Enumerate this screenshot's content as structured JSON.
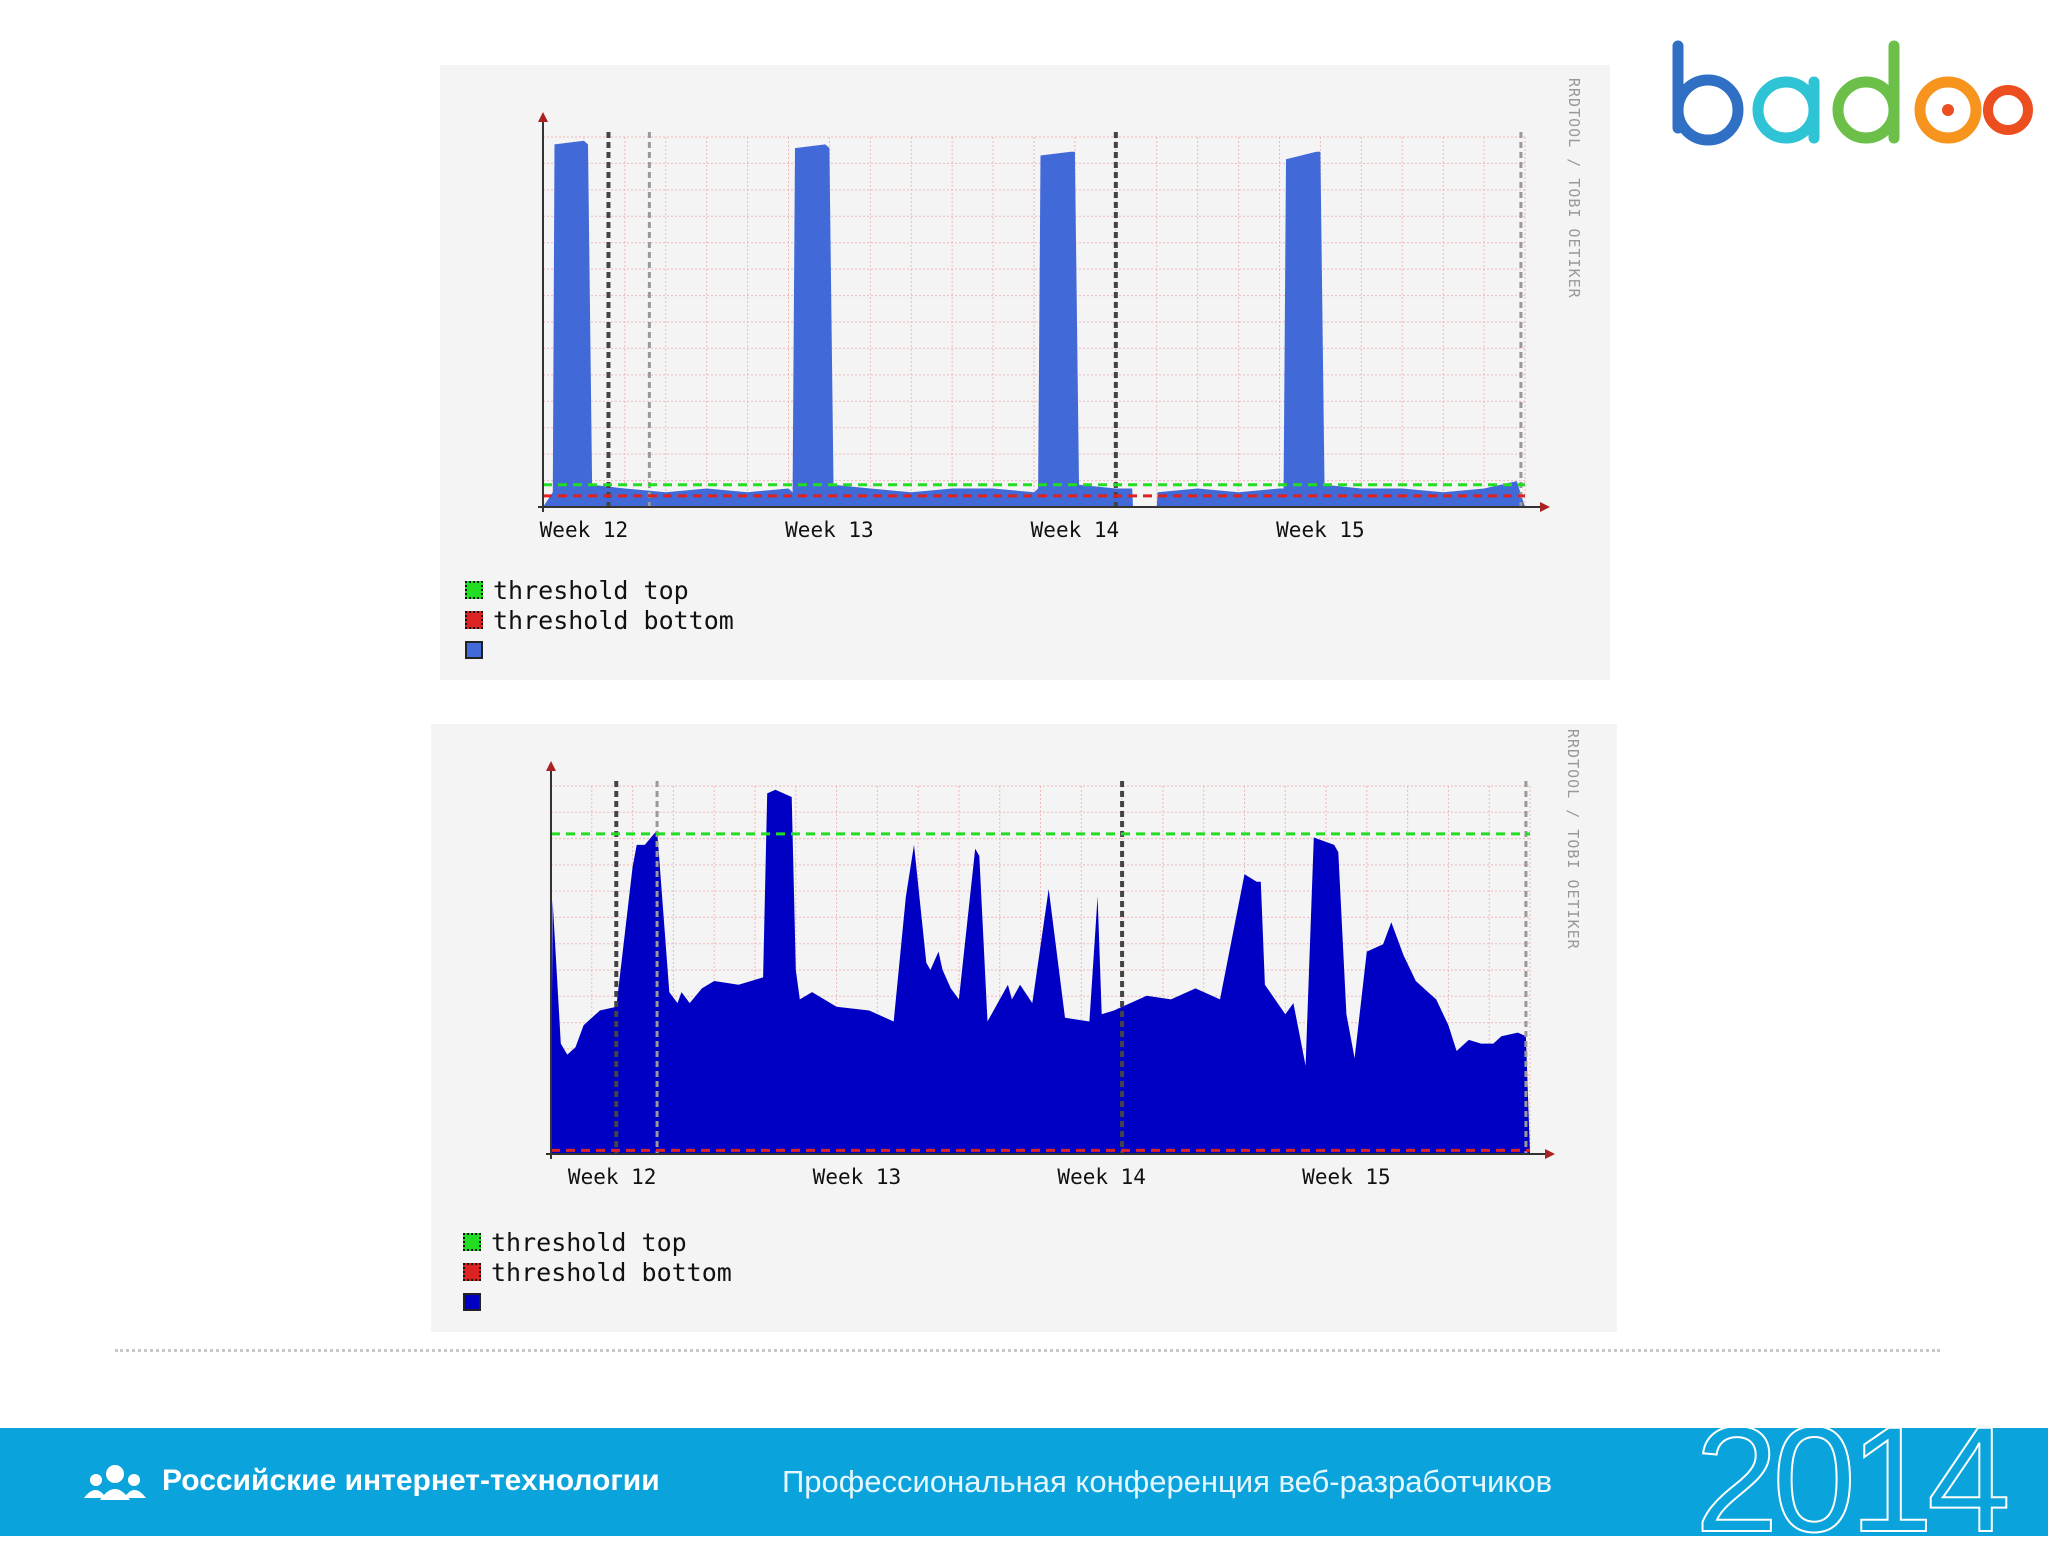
{
  "footer": {
    "organizer": "Российские интернет-технологии",
    "conference": "Профессиональная конференция веб-разработчиков",
    "year": "2014"
  },
  "logo": {
    "text": "badoo",
    "colors": [
      "#2f6fc4",
      "#2ec4d6",
      "#6cc04a",
      "#f7941e",
      "#ec4e20"
    ]
  },
  "colors": {
    "panel_bg": "#f4f4f4",
    "grid": "#f0b9b9",
    "threshold_top": "#22dd22",
    "threshold_bottom": "#dd2222",
    "area_1": "#4169d8",
    "area_2": "#0000c4"
  },
  "chart_data": [
    {
      "type": "area",
      "watermark": "RRDTOOL / TOBI OETIKER",
      "x_tick_labels": [
        "Week 12",
        "Week 13",
        "Week 14",
        "Week 15"
      ],
      "x_tick_positions": [
        0.5,
        3.5,
        6.5,
        9.5
      ],
      "xlim": [
        0,
        12
      ],
      "ylim": [
        0,
        1
      ],
      "grid": true,
      "week_boundaries": [
        0.8,
        7.0
      ],
      "threshold_top": 0.06,
      "threshold_bottom": 0.03,
      "legend": [
        {
          "label": "threshold top",
          "color": "#22dd22",
          "style": "dashed"
        },
        {
          "label": "threshold bottom",
          "color": "#dd2222",
          "style": "dashed"
        },
        {
          "label": "",
          "color": "#4169d8",
          "style": "area"
        }
      ],
      "series": [
        {
          "color": "#4169d8",
          "x": [
            0,
            0.12,
            0.14,
            0.5,
            0.55,
            0.6,
            1.0,
            1.5,
            2.0,
            2.5,
            3.0,
            3.05,
            3.08,
            3.45,
            3.5,
            3.55,
            4.0,
            4.5,
            5.0,
            5.5,
            6.0,
            6.05,
            6.08,
            6.45,
            6.5,
            6.55,
            7.0,
            7.2,
            7.21,
            7.5,
            7.51,
            8.0,
            8.5,
            9.0,
            9.05,
            9.08,
            9.45,
            9.5,
            9.55,
            10.0,
            10.5,
            11.0,
            11.5,
            11.9,
            12.0
          ],
          "y": [
            0,
            0.04,
            0.98,
            0.99,
            0.98,
            0.06,
            0.05,
            0.04,
            0.05,
            0.04,
            0.05,
            0.04,
            0.97,
            0.98,
            0.97,
            0.06,
            0.05,
            0.04,
            0.05,
            0.05,
            0.04,
            0.05,
            0.95,
            0.96,
            0.96,
            0.06,
            0.05,
            0.05,
            0.0,
            0.0,
            0.04,
            0.05,
            0.04,
            0.05,
            0.05,
            0.94,
            0.96,
            0.96,
            0.06,
            0.05,
            0.05,
            0.04,
            0.05,
            0.07,
            0
          ]
        }
      ]
    },
    {
      "type": "area",
      "watermark": "RRDTOOL / TOBI OETIKER",
      "x_tick_labels": [
        "Week 12",
        "Week 13",
        "Week 14",
        "Week 15"
      ],
      "x_tick_positions": [
        0.75,
        3.75,
        6.75,
        9.75
      ],
      "xlim": [
        0,
        12
      ],
      "ylim": [
        0,
        1
      ],
      "grid": true,
      "week_boundaries": [
        0.8,
        7.0
      ],
      "threshold_top": 0.87,
      "threshold_bottom": 0.01,
      "legend": [
        {
          "label": "threshold top",
          "color": "#22dd22",
          "style": "dashed"
        },
        {
          "label": "threshold bottom",
          "color": "#dd2222",
          "style": "dashed"
        },
        {
          "label": "",
          "color": "#0000c4",
          "style": "area"
        }
      ],
      "series": [
        {
          "color": "#0000c4",
          "x": [
            0,
            0.02,
            0.12,
            0.2,
            0.3,
            0.4,
            0.5,
            0.6,
            0.8,
            1.0,
            1.05,
            1.15,
            1.3,
            1.45,
            1.55,
            1.6,
            1.7,
            1.85,
            2.0,
            2.3,
            2.6,
            2.65,
            2.75,
            2.95,
            3.0,
            3.05,
            3.2,
            3.5,
            3.9,
            4.2,
            4.35,
            4.45,
            4.6,
            4.65,
            4.75,
            4.8,
            4.9,
            5.0,
            5.2,
            5.25,
            5.35,
            5.6,
            5.65,
            5.75,
            5.9,
            6.1,
            6.3,
            6.6,
            6.7,
            6.75,
            6.9,
            7.0,
            7.3,
            7.6,
            7.9,
            8.2,
            8.5,
            8.65,
            8.7,
            8.75,
            9.0,
            9.1,
            9.25,
            9.35,
            9.6,
            9.65,
            9.75,
            9.85,
            10.0,
            10.2,
            10.3,
            10.45,
            10.6,
            10.75,
            10.85,
            11.0,
            11.1,
            11.25,
            11.4,
            11.55,
            11.65,
            11.85,
            11.95,
            12.0
          ],
          "y": [
            0,
            0.69,
            0.3,
            0.27,
            0.29,
            0.35,
            0.37,
            0.39,
            0.4,
            0.78,
            0.84,
            0.84,
            0.88,
            0.44,
            0.41,
            0.44,
            0.41,
            0.45,
            0.47,
            0.46,
            0.48,
            0.98,
            0.99,
            0.97,
            0.5,
            0.42,
            0.44,
            0.4,
            0.39,
            0.36,
            0.7,
            0.84,
            0.52,
            0.5,
            0.55,
            0.5,
            0.45,
            0.42,
            0.83,
            0.81,
            0.36,
            0.46,
            0.42,
            0.46,
            0.41,
            0.72,
            0.37,
            0.36,
            0.7,
            0.38,
            0.39,
            0.4,
            0.43,
            0.42,
            0.45,
            0.42,
            0.76,
            0.74,
            0.74,
            0.46,
            0.38,
            0.41,
            0.24,
            0.86,
            0.84,
            0.82,
            0.38,
            0.26,
            0.55,
            0.57,
            0.63,
            0.54,
            0.47,
            0.44,
            0.42,
            0.35,
            0.28,
            0.31,
            0.3,
            0.3,
            0.32,
            0.33,
            0.32,
            0
          ]
        }
      ]
    }
  ]
}
